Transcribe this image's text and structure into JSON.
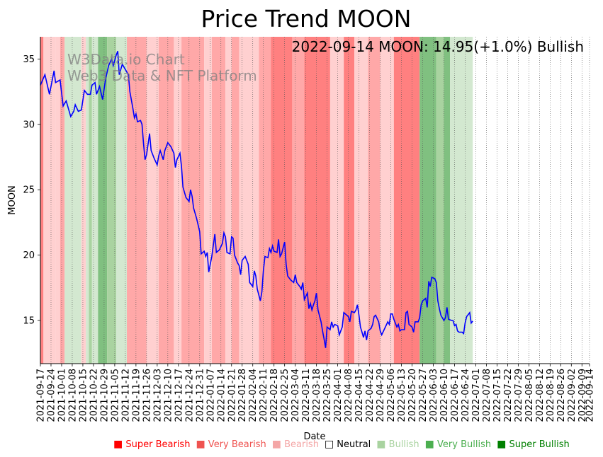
{
  "chart_data": {
    "type": "line",
    "title": "Price Trend MOON",
    "annotation": "2022-09-14 MOON: 14.95(+1.0%) Bullish",
    "watermark": [
      "W3Data.io Chart",
      "Web3 Data & NFT Platform"
    ],
    "xlabel": "Date",
    "ylabel": "MOON",
    "ylim": [
      11.7,
      36.7
    ],
    "yticks": [
      15,
      20,
      25,
      30,
      35
    ],
    "start_date": "2021-09-17",
    "end_date": "2022-09-14",
    "xticks": [
      "2021-09-17",
      "2021-09-24",
      "2021-10-01",
      "2021-10-08",
      "2021-10-15",
      "2021-10-22",
      "2021-10-29",
      "2021-11-05",
      "2021-11-12",
      "2021-11-19",
      "2021-11-26",
      "2021-12-03",
      "2021-12-10",
      "2021-12-17",
      "2021-12-24",
      "2021-12-31",
      "2022-01-07",
      "2022-01-14",
      "2022-01-21",
      "2022-01-28",
      "2022-02-04",
      "2022-02-11",
      "2022-02-18",
      "2022-02-25",
      "2022-03-04",
      "2022-03-11",
      "2022-03-18",
      "2022-03-25",
      "2022-04-01",
      "2022-04-08",
      "2022-04-15",
      "2022-04-22",
      "2022-04-29",
      "2022-05-06",
      "2022-05-13",
      "2022-05-20",
      "2022-05-27",
      "2022-06-03",
      "2022-06-10",
      "2022-06-17",
      "2022-06-24",
      "2022-07-01",
      "2022-07-08",
      "2022-07-15",
      "2022-07-22",
      "2022-07-29",
      "2022-08-05",
      "2022-08-12",
      "2022-08-19",
      "2022-08-26",
      "2022-09-02",
      "2022-09-09",
      "2022-09-14"
    ],
    "series": [
      {
        "name": "MOON",
        "color": "#0000ff",
        "points": [
          [
            0,
            33.0
          ],
          [
            3,
            33.8
          ],
          [
            6,
            32.3
          ],
          [
            9,
            34.1
          ],
          [
            10,
            33.2
          ],
          [
            13,
            33.4
          ],
          [
            15,
            31.4
          ],
          [
            17,
            31.8
          ],
          [
            20,
            30.6
          ],
          [
            22,
            31.0
          ],
          [
            23,
            31.5
          ],
          [
            25,
            31.0
          ],
          [
            27,
            31.1
          ],
          [
            29,
            32.6
          ],
          [
            31,
            32.3
          ],
          [
            33,
            32.3
          ],
          [
            34,
            33.0
          ],
          [
            36,
            33.2
          ],
          [
            37,
            32.3
          ],
          [
            39,
            32.9
          ],
          [
            41,
            31.9
          ],
          [
            43,
            33.5
          ],
          [
            45,
            34.5
          ],
          [
            47,
            35.0
          ],
          [
            48,
            34.5
          ],
          [
            50,
            35.3
          ],
          [
            51,
            35.6
          ],
          [
            52,
            33.8
          ],
          [
            54,
            34.6
          ],
          [
            56,
            34.2
          ],
          [
            58,
            33.8
          ],
          [
            59,
            32.5
          ],
          [
            61,
            31.2
          ],
          [
            62,
            30.5
          ],
          [
            63,
            30.8
          ],
          [
            64,
            30.2
          ],
          [
            66,
            30.3
          ],
          [
            67,
            30.0
          ],
          [
            68,
            28.5
          ],
          [
            69,
            27.3
          ],
          [
            70,
            27.7
          ],
          [
            72,
            29.3
          ],
          [
            73,
            28.0
          ],
          [
            75,
            27.4
          ],
          [
            77,
            26.9
          ],
          [
            78,
            27.6
          ],
          [
            79,
            28.0
          ],
          [
            81,
            27.3
          ],
          [
            82,
            28.0
          ],
          [
            84,
            28.6
          ],
          [
            86,
            28.3
          ],
          [
            88,
            27.8
          ],
          [
            89,
            26.7
          ],
          [
            90,
            27.3
          ],
          [
            92,
            27.8
          ],
          [
            93,
            26.8
          ],
          [
            94,
            25.2
          ],
          [
            96,
            24.4
          ],
          [
            98,
            24.1
          ],
          [
            99,
            25.0
          ],
          [
            100,
            24.5
          ],
          [
            101,
            23.6
          ],
          [
            103,
            22.8
          ],
          [
            105,
            21.8
          ],
          [
            106,
            20.1
          ],
          [
            108,
            20.3
          ],
          [
            109,
            19.9
          ],
          [
            110,
            20.2
          ],
          [
            111,
            18.7
          ],
          [
            113,
            19.9
          ],
          [
            115,
            21.6
          ],
          [
            116,
            20.2
          ],
          [
            118,
            20.4
          ],
          [
            120,
            20.9
          ],
          [
            121,
            21.7
          ],
          [
            122,
            21.4
          ],
          [
            123,
            20.2
          ],
          [
            125,
            20.1
          ],
          [
            126,
            21.4
          ],
          [
            127,
            21.3
          ],
          [
            128,
            20.0
          ],
          [
            130,
            19.4
          ],
          [
            131,
            19.2
          ],
          [
            132,
            18.5
          ],
          [
            133,
            19.6
          ],
          [
            135,
            19.9
          ],
          [
            137,
            19.3
          ],
          [
            138,
            17.9
          ],
          [
            140,
            17.6
          ],
          [
            141,
            18.8
          ],
          [
            142,
            18.4
          ],
          [
            143,
            17.4
          ],
          [
            145,
            16.5
          ],
          [
            146,
            17.2
          ],
          [
            147,
            18.8
          ],
          [
            148,
            19.9
          ],
          [
            150,
            19.8
          ],
          [
            151,
            20.5
          ],
          [
            152,
            20.2
          ],
          [
            153,
            20.7
          ],
          [
            154,
            20.3
          ],
          [
            156,
            20.2
          ],
          [
            157,
            21.2
          ],
          [
            158,
            19.9
          ],
          [
            159,
            20.1
          ],
          [
            161,
            21.0
          ],
          [
            162,
            19.3
          ],
          [
            163,
            18.4
          ],
          [
            165,
            18.1
          ],
          [
            167,
            17.9
          ],
          [
            168,
            18.5
          ],
          [
            169,
            17.9
          ],
          [
            171,
            17.6
          ],
          [
            172,
            17.4
          ],
          [
            173,
            17.9
          ],
          [
            174,
            16.6
          ],
          [
            176,
            17.1
          ],
          [
            177,
            15.9
          ],
          [
            178,
            16.3
          ],
          [
            179,
            15.8
          ],
          [
            180,
            16.2
          ],
          [
            181,
            16.5
          ],
          [
            182,
            17.1
          ],
          [
            183,
            15.8
          ],
          [
            185,
            14.9
          ],
          [
            186,
            14.2
          ],
          [
            187,
            13.6
          ],
          [
            188,
            12.9
          ],
          [
            189,
            14.5
          ],
          [
            191,
            14.3
          ],
          [
            192,
            14.9
          ],
          [
            193,
            14.5
          ],
          [
            194,
            14.7
          ],
          [
            196,
            14.6
          ],
          [
            197,
            13.9
          ],
          [
            199,
            14.5
          ],
          [
            200,
            15.6
          ],
          [
            203,
            15.3
          ],
          [
            204,
            14.9
          ],
          [
            205,
            15.7
          ],
          [
            207,
            15.6
          ],
          [
            208,
            15.8
          ],
          [
            209,
            16.2
          ],
          [
            210,
            15.4
          ],
          [
            211,
            14.5
          ],
          [
            212,
            14.1
          ],
          [
            213,
            13.7
          ],
          [
            214,
            14.2
          ],
          [
            215,
            13.5
          ],
          [
            216,
            14.2
          ],
          [
            218,
            14.4
          ],
          [
            219,
            14.7
          ],
          [
            220,
            15.3
          ],
          [
            221,
            15.4
          ],
          [
            223,
            14.9
          ],
          [
            224,
            14.2
          ],
          [
            225,
            13.9
          ],
          [
            227,
            14.4
          ],
          [
            229,
            14.9
          ],
          [
            230,
            14.7
          ],
          [
            231,
            15.5
          ],
          [
            232,
            15.5
          ],
          [
            233,
            15.1
          ],
          [
            235,
            14.5
          ],
          [
            236,
            14.7
          ],
          [
            237,
            14.2
          ],
          [
            238,
            14.3
          ],
          [
            240,
            14.3
          ],
          [
            241,
            15.6
          ],
          [
            242,
            15.7
          ],
          [
            243,
            14.7
          ],
          [
            245,
            14.5
          ],
          [
            246,
            14.1
          ],
          [
            247,
            14.9
          ],
          [
            249,
            14.9
          ],
          [
            250,
            15.2
          ],
          [
            251,
            16.2
          ],
          [
            252,
            16.5
          ],
          [
            254,
            16.7
          ],
          [
            255,
            16.0
          ],
          [
            256,
            18.0
          ],
          [
            257,
            17.6
          ],
          [
            258,
            18.3
          ],
          [
            260,
            18.2
          ],
          [
            261,
            17.9
          ],
          [
            262,
            16.5
          ],
          [
            263,
            15.9
          ],
          [
            264,
            15.4
          ],
          [
            266,
            15.0
          ],
          [
            267,
            15.2
          ],
          [
            268,
            16.0
          ],
          [
            269,
            15.1
          ],
          [
            271,
            15.0
          ],
          [
            272,
            15.0
          ],
          [
            273,
            14.6
          ],
          [
            274,
            14.7
          ],
          [
            275,
            14.2
          ],
          [
            276,
            14.1
          ],
          [
            278,
            14.1
          ],
          [
            279,
            14.0
          ],
          [
            280,
            14.8
          ],
          [
            281,
            15.3
          ],
          [
            283,
            15.6
          ],
          [
            284,
            14.8
          ],
          [
            285,
            14.95
          ]
        ]
      }
    ],
    "trend_bands": [
      {
        "from": 0,
        "to": 2,
        "trend": "Super Bearish"
      },
      {
        "from": 2,
        "to": 10,
        "trend": "Bearish"
      },
      {
        "from": 10,
        "to": 13,
        "trend": "Bearish"
      },
      {
        "from": 13,
        "to": 16,
        "trend": "Very Bearish"
      },
      {
        "from": 16,
        "to": 27,
        "trend": "Bullish"
      },
      {
        "from": 27,
        "to": 30,
        "trend": "Bearish"
      },
      {
        "from": 30,
        "to": 32,
        "trend": "Bullish"
      },
      {
        "from": 32,
        "to": 34,
        "trend": "Very Bullish"
      },
      {
        "from": 34,
        "to": 38,
        "trend": "Bullish"
      },
      {
        "from": 38,
        "to": 44,
        "trend": "Super Bullish"
      },
      {
        "from": 44,
        "to": 50,
        "trend": "Very Bullish"
      },
      {
        "from": 50,
        "to": 57,
        "trend": "Bullish"
      },
      {
        "from": 57,
        "to": 70,
        "trend": "Very Bearish"
      },
      {
        "from": 70,
        "to": 78,
        "trend": "Bearish"
      },
      {
        "from": 78,
        "to": 88,
        "trend": "Very Bearish"
      },
      {
        "from": 88,
        "to": 93,
        "trend": "Bearish"
      },
      {
        "from": 93,
        "to": 108,
        "trend": "Very Bearish"
      },
      {
        "from": 108,
        "to": 113,
        "trend": "Bearish"
      },
      {
        "from": 113,
        "to": 122,
        "trend": "Very Bearish"
      },
      {
        "from": 122,
        "to": 126,
        "trend": "Bearish"
      },
      {
        "from": 126,
        "to": 131,
        "trend": "Very Bearish"
      },
      {
        "from": 131,
        "to": 144,
        "trend": "Bearish"
      },
      {
        "from": 144,
        "to": 152,
        "trend": "Very Bearish"
      },
      {
        "from": 152,
        "to": 166,
        "trend": "Super Bearish"
      },
      {
        "from": 166,
        "to": 174,
        "trend": "Very Bearish"
      },
      {
        "from": 174,
        "to": 191,
        "trend": "Super Bearish"
      },
      {
        "from": 191,
        "to": 200,
        "trend": "Bearish"
      },
      {
        "from": 200,
        "to": 207,
        "trend": "Super Bearish"
      },
      {
        "from": 207,
        "to": 216,
        "trend": "Bearish"
      },
      {
        "from": 216,
        "to": 224,
        "trend": "Very Bearish"
      },
      {
        "from": 224,
        "to": 233,
        "trend": "Bearish"
      },
      {
        "from": 233,
        "to": 250,
        "trend": "Super Bearish"
      },
      {
        "from": 250,
        "to": 261,
        "trend": "Super Bullish"
      },
      {
        "from": 261,
        "to": 266,
        "trend": "Very Bullish"
      },
      {
        "from": 266,
        "to": 270,
        "trend": "Super Bullish"
      },
      {
        "from": 270,
        "to": 285,
        "trend": "Bullish"
      }
    ],
    "legend": [
      {
        "label": "Super Bearish",
        "symbol": "■",
        "color": "#ff0000"
      },
      {
        "label": "Very Bearish",
        "symbol": "■",
        "color": "#ef5350"
      },
      {
        "label": "Bearish",
        "symbol": "■",
        "color": "#f4a6a6"
      },
      {
        "label": "Neutral",
        "symbol": "□",
        "color": "#000000"
      },
      {
        "label": "Bullish",
        "symbol": "■",
        "color": "#a9d3a0"
      },
      {
        "label": "Very Bullish",
        "symbol": "■",
        "color": "#4caf50"
      },
      {
        "label": "Super Bullish",
        "symbol": "■",
        "color": "#008000"
      }
    ],
    "trend_colors": {
      "Super Bearish": "#ff8080",
      "Very Bearish": "#ffa8a8",
      "Bearish": "#ffd0d0",
      "Neutral": "#ffffff",
      "Bullish": "#d3e8d0",
      "Very Bullish": "#a9d3a0",
      "Super Bullish": "#80c080"
    }
  }
}
